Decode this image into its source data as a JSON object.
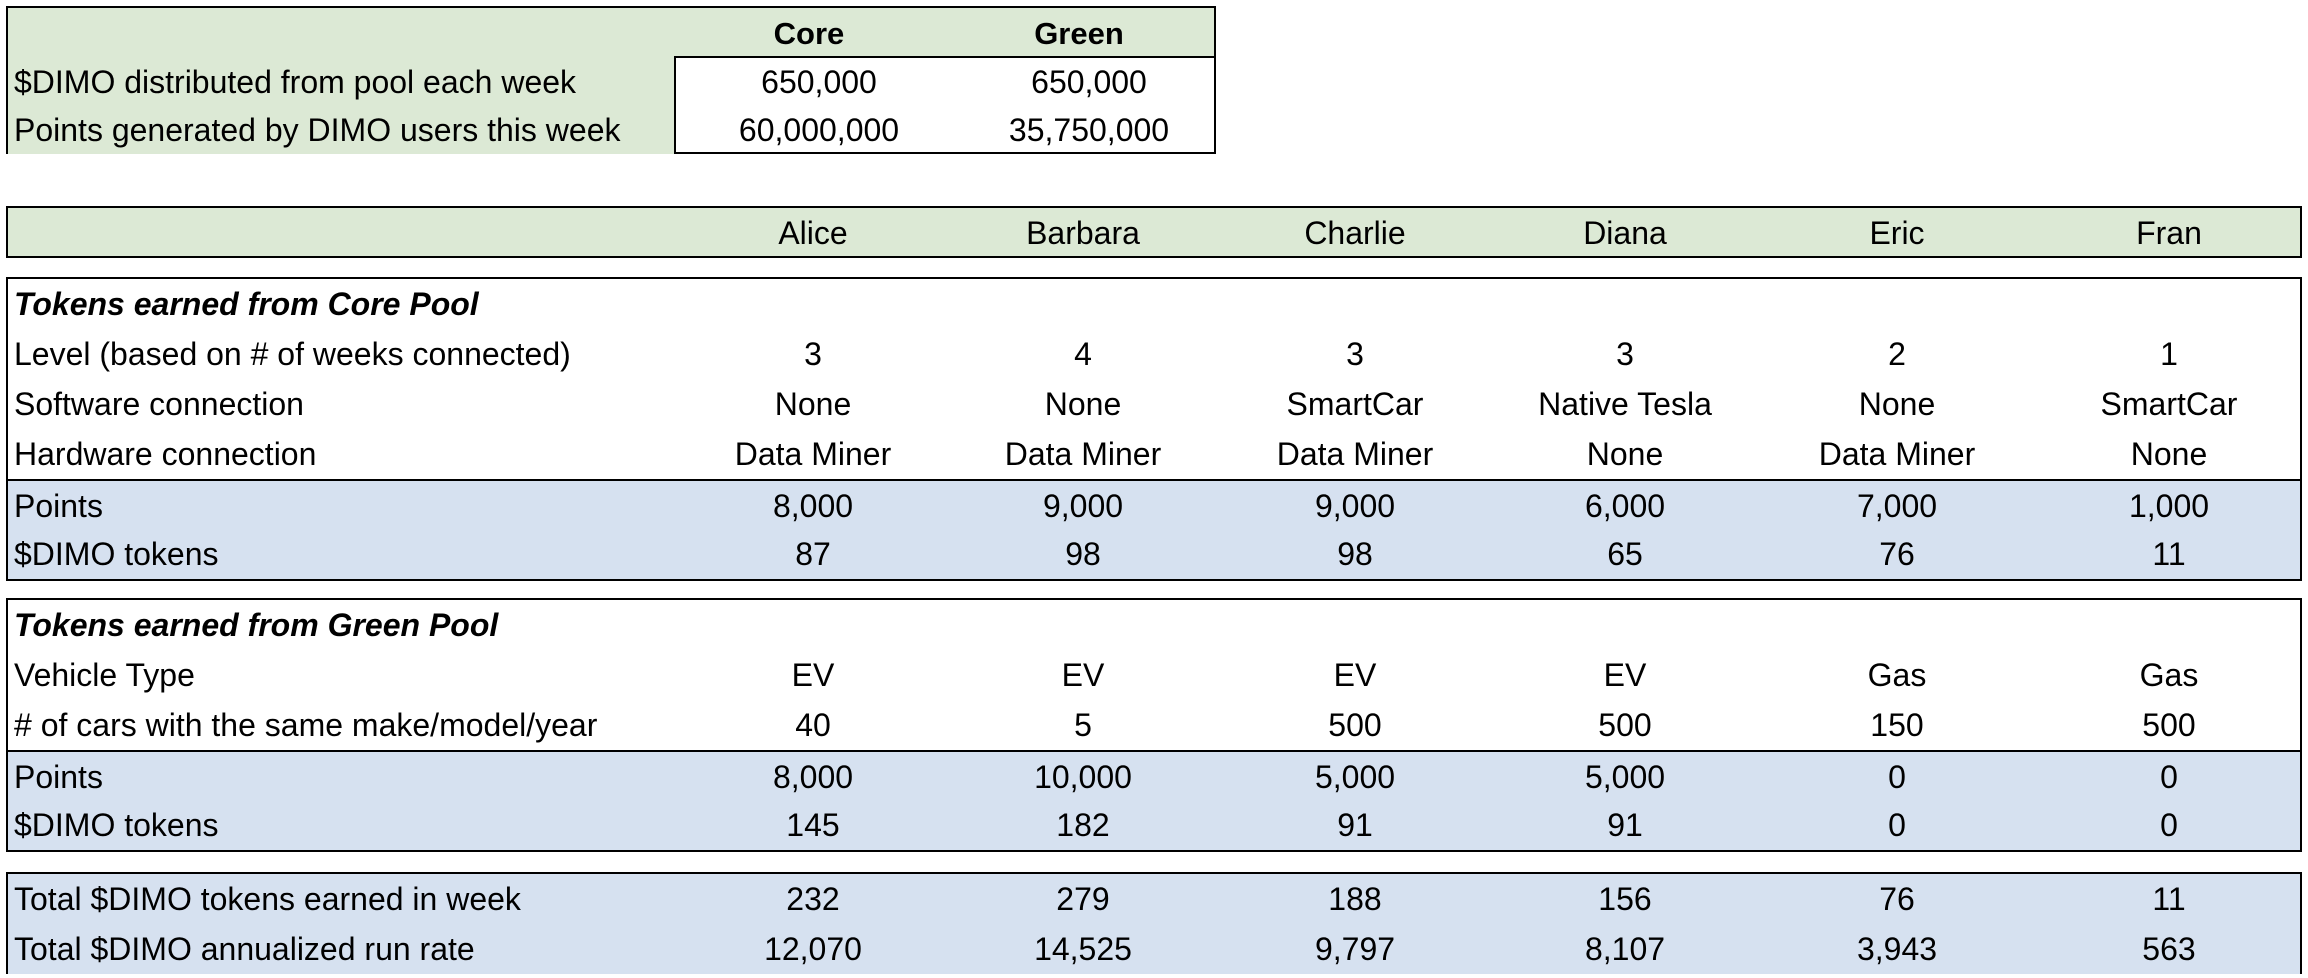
{
  "summary": {
    "headers": [
      "Core",
      "Green"
    ],
    "rows": [
      {
        "label": "$DIMO distributed from pool each week",
        "core": "650,000",
        "green": "650,000"
      },
      {
        "label": "Points generated by DIMO users this week",
        "core": "60,000,000",
        "green": "35,750,000"
      }
    ]
  },
  "people": [
    "Alice",
    "Barbara",
    "Charlie",
    "Diana",
    "Eric",
    "Fran"
  ],
  "core_pool": {
    "title": "Tokens earned from Core Pool",
    "rows": [
      {
        "label": "Level (based on # of weeks connected)",
        "values": [
          "3",
          "4",
          "3",
          "3",
          "2",
          "1"
        ]
      },
      {
        "label": "Software connection",
        "values": [
          "None",
          "None",
          "SmartCar",
          "Native Tesla",
          "None",
          "SmartCar"
        ]
      },
      {
        "label": "Hardware connection",
        "values": [
          "Data Miner",
          "Data Miner",
          "Data Miner",
          "None",
          "Data Miner",
          "None"
        ]
      }
    ],
    "results": [
      {
        "label": "Points",
        "values": [
          "8,000",
          "9,000",
          "9,000",
          "6,000",
          "7,000",
          "1,000"
        ]
      },
      {
        "label": "$DIMO tokens",
        "values": [
          "87",
          "98",
          "98",
          "65",
          "76",
          "11"
        ]
      }
    ]
  },
  "green_pool": {
    "title": "Tokens earned from Green Pool",
    "rows": [
      {
        "label": "Vehicle Type",
        "values": [
          "EV",
          "EV",
          "EV",
          "EV",
          "Gas",
          "Gas"
        ]
      },
      {
        "label": "# of cars with the same make/model/year",
        "values": [
          "40",
          "5",
          "500",
          "500",
          "150",
          "500"
        ]
      }
    ],
    "results": [
      {
        "label": "Points",
        "values": [
          "8,000",
          "10,000",
          "5,000",
          "5,000",
          "0",
          "0"
        ]
      },
      {
        "label": "$DIMO tokens",
        "values": [
          "145",
          "182",
          "91",
          "91",
          "0",
          "0"
        ]
      }
    ]
  },
  "totals": [
    {
      "label": "Total $DIMO tokens earned in week",
      "values": [
        "232",
        "279",
        "188",
        "156",
        "76",
        "11"
      ]
    },
    {
      "label": "Total $DIMO annualized run rate",
      "values": [
        "12,070",
        "14,525",
        "9,797",
        "8,107",
        "3,943",
        "563"
      ]
    }
  ],
  "colors": {
    "green_fill": "#dce9d5",
    "blue_fill": "#d6e1f0",
    "border": "#000000"
  }
}
